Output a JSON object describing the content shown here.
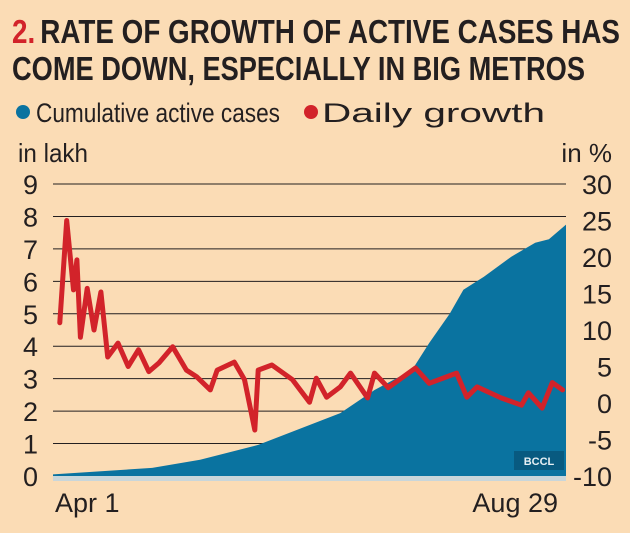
{
  "header": {
    "number": "2.",
    "title_line1": "RATE OF GROWTH OF ACTIVE CASES HAS",
    "title_line2": "COME DOWN, ESPECIALLY IN BIG METROS"
  },
  "credit": "BCCL",
  "colors": {
    "background": "#fbdcb5",
    "cumulative": "#0a73a0",
    "growth": "#d2232a",
    "number": "#d2232a"
  },
  "chart_data": {
    "type": "area+line",
    "legend": [
      {
        "label": "Cumulative active cases",
        "color": "#0a73a0"
      },
      {
        "label": "Daily growth",
        "color": "#d2232a"
      }
    ],
    "legend_placement": "top",
    "grid": true,
    "x_range": [
      "2020-04-01",
      "2020-08-29"
    ],
    "x_tick_labels": [
      "Apr 1",
      "Aug 29"
    ],
    "y_left": {
      "label": "in lakh",
      "range": [
        0,
        9
      ],
      "ticks": [
        "0",
        "1",
        "2",
        "3",
        "4",
        "5",
        "6",
        "7",
        "8",
        "9"
      ]
    },
    "y_right": {
      "label": "in %",
      "range": [
        -10,
        30
      ],
      "ticks": [
        "-10",
        "-5",
        "0",
        "5",
        "10",
        "15",
        "20",
        "25",
        "30"
      ]
    },
    "series": [
      {
        "name": "Cumulative active cases",
        "axis": "left",
        "type": "area",
        "points": [
          [
            "2020-04-01",
            0.05
          ],
          [
            "2020-04-30",
            0.25
          ],
          [
            "2020-05-14",
            0.5
          ],
          [
            "2020-05-31",
            0.96
          ],
          [
            "2020-06-24",
            1.94
          ],
          [
            "2020-07-04",
            2.65
          ],
          [
            "2020-07-15",
            3.27
          ],
          [
            "2020-07-20",
            4.1
          ],
          [
            "2020-07-26",
            5.0
          ],
          [
            "2020-07-30",
            5.74
          ],
          [
            "2020-08-05",
            6.14
          ],
          [
            "2020-08-13",
            6.76
          ],
          [
            "2020-08-20",
            7.19
          ],
          [
            "2020-08-24",
            7.3
          ],
          [
            "2020-08-29",
            7.75
          ]
        ]
      },
      {
        "name": "Daily growth",
        "axis": "right",
        "type": "line",
        "points": [
          [
            "2020-04-03",
            11
          ],
          [
            "2020-04-05",
            25
          ],
          [
            "2020-04-07",
            15.5
          ],
          [
            "2020-04-08",
            19.6
          ],
          [
            "2020-04-09",
            9
          ],
          [
            "2020-04-11",
            15.7
          ],
          [
            "2020-04-13",
            10
          ],
          [
            "2020-04-15",
            15.2
          ],
          [
            "2020-04-17",
            6.3
          ],
          [
            "2020-04-20",
            8.2
          ],
          [
            "2020-04-23",
            5
          ],
          [
            "2020-04-26",
            7.3
          ],
          [
            "2020-04-29",
            4.3
          ],
          [
            "2020-05-02",
            5.5
          ],
          [
            "2020-05-06",
            7.7
          ],
          [
            "2020-05-10",
            4.5
          ],
          [
            "2020-05-13",
            3.6
          ],
          [
            "2020-05-17",
            1.8
          ],
          [
            "2020-05-19",
            4.5
          ],
          [
            "2020-05-24",
            5.6
          ],
          [
            "2020-05-27",
            3.2
          ],
          [
            "2020-05-30",
            -3.7
          ],
          [
            "2020-05-31",
            4.5
          ],
          [
            "2020-06-04",
            5.2
          ],
          [
            "2020-06-10",
            3.2
          ],
          [
            "2020-06-15",
            0.1
          ],
          [
            "2020-06-17",
            3.4
          ],
          [
            "2020-06-20",
            0.8
          ],
          [
            "2020-06-24",
            2.2
          ],
          [
            "2020-06-27",
            4.1
          ],
          [
            "2020-07-02",
            0.7
          ],
          [
            "2020-07-04",
            4.1
          ],
          [
            "2020-07-08",
            2.1
          ],
          [
            "2020-07-16",
            4.8
          ],
          [
            "2020-07-20",
            2.7
          ],
          [
            "2020-07-28",
            4.1
          ],
          [
            "2020-07-31",
            0.8
          ],
          [
            "2020-08-03",
            2.2
          ],
          [
            "2020-08-10",
            0.7
          ],
          [
            "2020-08-16",
            -0.3
          ],
          [
            "2020-08-18",
            1.4
          ],
          [
            "2020-08-22",
            -0.7
          ],
          [
            "2020-08-25",
            2.8
          ],
          [
            "2020-08-28",
            1.8
          ]
        ]
      }
    ]
  }
}
